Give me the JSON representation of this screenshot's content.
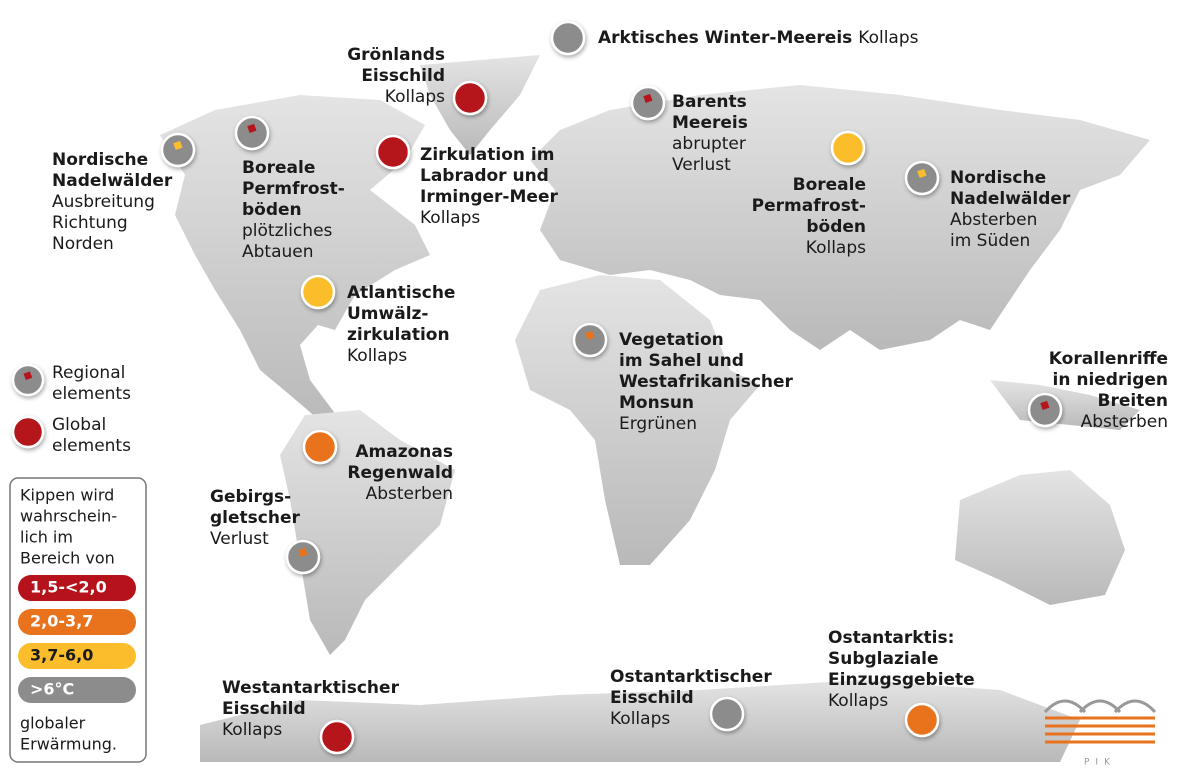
{
  "elements": [
    {
      "title_lines": [
        "Arktisches Winter-Meereis"
      ],
      "subtitle_lines": [
        "Kollaps"
      ],
      "marker": "global",
      "color": "#8c8c8c"
    },
    {
      "title_lines": [
        "Grönlands",
        "Eisschild"
      ],
      "subtitle_lines": [
        "Kollaps"
      ],
      "marker": "global",
      "color": "#b5121b"
    },
    {
      "title_lines": [
        "Zirkulation im",
        "Labrador und",
        "Irminger-Meer"
      ],
      "subtitle_lines": [
        "Kollaps"
      ],
      "marker": "global",
      "color": "#b5121b"
    },
    {
      "title_lines": [
        "Barents",
        "Meereis"
      ],
      "subtitle_lines": [
        "abrupter",
        "Verlust"
      ],
      "marker": "regional",
      "color": "#b5121b"
    },
    {
      "title_lines": [
        "Nordische",
        "Nadelwälder"
      ],
      "subtitle_lines": [
        "Ausbreitung",
        "Richtung",
        "Norden"
      ],
      "marker": "regional",
      "color": "#fbbd2c"
    },
    {
      "title_lines": [
        "Boreale",
        "Permfrost-",
        "böden"
      ],
      "subtitle_lines": [
        "plötzliches",
        "Abtauen"
      ],
      "marker": "regional",
      "color": "#b5121b"
    },
    {
      "title_lines": [
        "Boreale",
        "Permafrost-",
        "böden"
      ],
      "subtitle_lines": [
        "Kollaps"
      ],
      "marker": "global",
      "color": "#fbbd2c"
    },
    {
      "title_lines": [
        "Nordische",
        "Nadelwälder"
      ],
      "subtitle_lines": [
        "Absterben",
        "im Süden"
      ],
      "marker": "regional",
      "color": "#fbbd2c"
    },
    {
      "title_lines": [
        "Atlantische",
        "Umwälz-",
        "zirkulation"
      ],
      "subtitle_lines": [
        "Kollaps"
      ],
      "marker": "global",
      "color": "#fbbd2c"
    },
    {
      "title_lines": [
        "Vegetation",
        "im Sahel und",
        "Westafrikanischer",
        "Monsun"
      ],
      "subtitle_lines": [
        "Ergrünen"
      ],
      "marker": "regional",
      "color": "#e8731c"
    },
    {
      "title_lines": [
        "Korallenriffe",
        "in niedrigen",
        "Breiten"
      ],
      "subtitle_lines": [
        "Absterben"
      ],
      "marker": "regional",
      "color": "#b5121b"
    },
    {
      "title_lines": [
        "Amazonas",
        "Regenwald"
      ],
      "subtitle_lines": [
        "Absterben"
      ],
      "marker": "global",
      "color": "#e8731c"
    },
    {
      "title_lines": [
        "Gebirgs-",
        "gletscher"
      ],
      "subtitle_lines": [
        "Verlust"
      ],
      "marker": "regional",
      "color": "#e8731c"
    },
    {
      "title_lines": [
        "Westantarktischer",
        "Eisschild"
      ],
      "subtitle_lines": [
        "Kollaps"
      ],
      "marker": "global",
      "color": "#b5121b"
    },
    {
      "title_lines": [
        "Ostantarktischer",
        "Eisschild"
      ],
      "subtitle_lines": [
        "Kollaps"
      ],
      "marker": "global",
      "color": "#8c8c8c"
    },
    {
      "title_lines": [
        "Ostantarktis:",
        "Subglaziale",
        "Einzugsgebiete"
      ],
      "subtitle_lines": [
        "Kollaps"
      ],
      "marker": "global",
      "color": "#e8731c"
    }
  ],
  "legend": {
    "markers": [
      {
        "lines": [
          "Regional",
          "elements"
        ],
        "marker": "regional",
        "color": "#b5121b"
      },
      {
        "lines": [
          "Global",
          "elements"
        ],
        "marker": "global",
        "color": "#b5121b"
      }
    ],
    "intro_lines": [
      "Kippen wird",
      "wahrschein-",
      "lich im",
      "Bereich von"
    ],
    "ranges": [
      {
        "label": "1,5-<2,0",
        "color": "#b5121b"
      },
      {
        "label": "2,0-3,7",
        "color": "#e8731c"
      },
      {
        "label": "3,7-6,0",
        "color": "#fbbd2c"
      },
      {
        "label": ">6°C",
        "color": "#8c8c8c"
      }
    ],
    "outro_lines": [
      "globaler",
      "Erwärmung."
    ]
  },
  "logo": "PIK"
}
